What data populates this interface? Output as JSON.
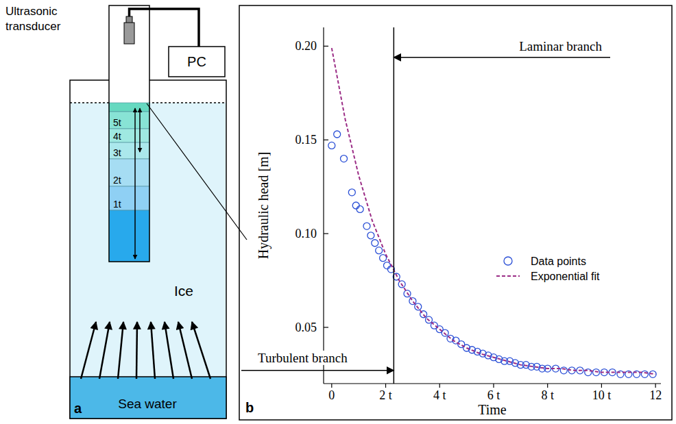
{
  "chart_data": {
    "type": "scatter",
    "panel_label": "b",
    "x_label": "Time",
    "y_label": "Hydraulic head [m]",
    "xlim": [
      -0.3,
      12.2
    ],
    "ylim": [
      0.02,
      0.21
    ],
    "xticks": [
      0,
      {
        "value": 2,
        "label": "2 t"
      },
      {
        "value": 4,
        "label": "4 t"
      },
      {
        "value": 6,
        "label": "6 t"
      },
      {
        "value": 8,
        "label": "8 t"
      },
      {
        "value": 10,
        "label": "10 t"
      },
      12
    ],
    "yticks": [
      0.05,
      {
        "value": 0.1,
        "label": "0.10"
      },
      0.15,
      {
        "value": 0.2,
        "label": "0.20"
      }
    ],
    "grid": false,
    "legend": "right",
    "series": [
      {
        "name": "Data points",
        "type": "scatter",
        "marker": "circle",
        "color": "#2a4fd6",
        "x": [
          0,
          0.2,
          0.45,
          0.75,
          0.9,
          1.05,
          1.3,
          1.45,
          1.6,
          1.75,
          1.9,
          2.05,
          2.2,
          2.4,
          2.6,
          2.8,
          3.0,
          3.2,
          3.4,
          3.6,
          3.8,
          4.0,
          4.2,
          4.4,
          4.6,
          4.8,
          5.0,
          5.2,
          5.4,
          5.6,
          5.8,
          6.0,
          6.2,
          6.4,
          6.6,
          6.8,
          7.0,
          7.2,
          7.4,
          7.6,
          7.8,
          8.0,
          8.3,
          8.6,
          8.9,
          9.2,
          9.5,
          9.8,
          10.1,
          10.4,
          10.7,
          11.0,
          11.3,
          11.6,
          11.9
        ],
        "values": [
          0.147,
          0.153,
          0.14,
          0.122,
          0.115,
          0.113,
          0.104,
          0.099,
          0.095,
          0.091,
          0.087,
          0.083,
          0.081,
          0.077,
          0.073,
          0.068,
          0.064,
          0.061,
          0.057,
          0.054,
          0.051,
          0.049,
          0.047,
          0.044,
          0.043,
          0.041,
          0.039,
          0.038,
          0.037,
          0.036,
          0.035,
          0.034,
          0.033,
          0.032,
          0.032,
          0.031,
          0.03,
          0.03,
          0.029,
          0.029,
          0.028,
          0.028,
          0.028,
          0.027,
          0.027,
          0.027,
          0.026,
          0.026,
          0.026,
          0.026,
          0.025,
          0.025,
          0.025,
          0.025,
          0.025
        ]
      },
      {
        "name": "Exponential fit",
        "type": "line",
        "line_style": "dashed",
        "color": "#9b2d86",
        "x": [
          0,
          0.5,
          1,
          1.5,
          2,
          2.5,
          3,
          3.5,
          4,
          4.5,
          5,
          5.5,
          6,
          6.5,
          7,
          7.5,
          8,
          8.5,
          9,
          9.5,
          10,
          10.5,
          11,
          11.5,
          12
        ],
        "values": [
          0.199,
          0.161,
          0.131,
          0.107,
          0.089,
          0.075,
          0.064,
          0.055,
          0.049,
          0.043,
          0.039,
          0.036,
          0.034,
          0.032,
          0.03,
          0.029,
          0.028,
          0.028,
          0.027,
          0.027,
          0.026,
          0.026,
          0.026,
          0.026,
          0.025
        ]
      }
    ],
    "annotations": [
      {
        "text": "Laminar branch",
        "x": 2.3,
        "y": 0.194
      },
      {
        "text": "Turbulent branch",
        "x": 2.3,
        "y": 0.027
      }
    ]
  },
  "diagram": {
    "panel_label": "a",
    "transducer": "Ultrasonic transducer",
    "pc": "PC",
    "ice": "Ice",
    "sea_water": "Sea water",
    "levels": [
      "1t",
      "2t",
      "3t",
      "4t",
      "5t"
    ]
  }
}
